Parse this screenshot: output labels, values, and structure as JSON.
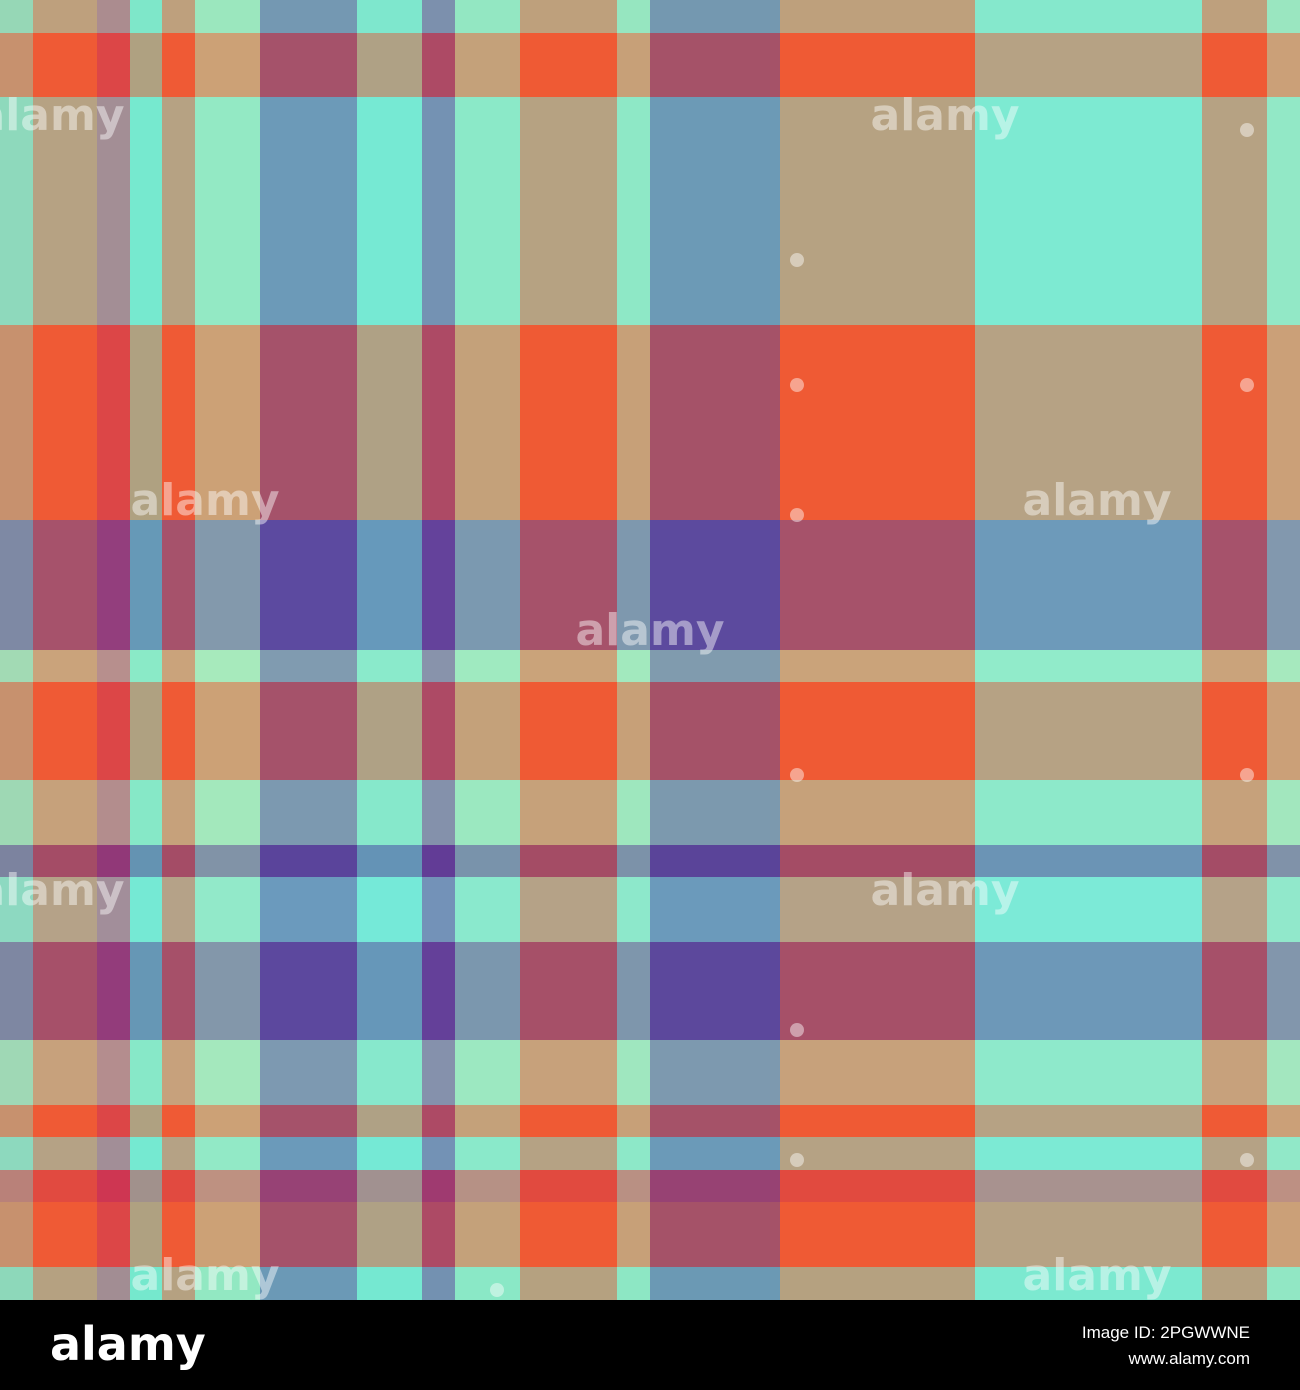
{
  "watermark": "alamy",
  "footer": {
    "logo": "alamy",
    "image_id": "Image ID: 2PGWWNE",
    "url": "www.alamy.com"
  }
}
